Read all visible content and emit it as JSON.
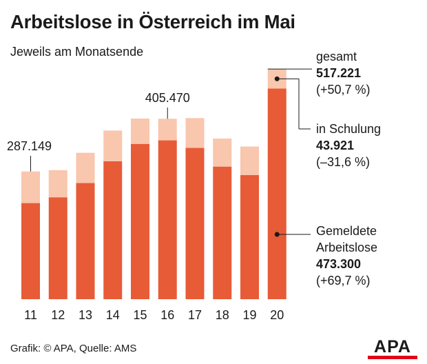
{
  "title": "Arbeitslose in Österreich im Mai",
  "subtitle": "Jeweils am Monatsende",
  "source": "Grafik: © APA, Quelle: AMS",
  "logo": "APA",
  "colors": {
    "registered": "#e75b37",
    "training": "#f9c6ae",
    "text": "#1a1a1a"
  },
  "chart_data": {
    "type": "bar",
    "stacked": true,
    "categories": [
      "11",
      "12",
      "13",
      "14",
      "15",
      "16",
      "17",
      "18",
      "19",
      "20"
    ],
    "series": [
      {
        "name": "Gemeldete Arbeitslose",
        "values": [
          216000,
          229000,
          261000,
          310000,
          349000,
          357000,
          340000,
          298000,
          279000,
          473300
        ]
      },
      {
        "name": "in Schulung",
        "values": [
          71149,
          61000,
          68000,
          69000,
          57000,
          48470,
          67000,
          63000,
          64000,
          43921
        ]
      }
    ],
    "ylim": [
      0,
      550000
    ],
    "value_labels": [
      {
        "category": "11",
        "text": "287.149"
      },
      {
        "category": "16",
        "text": "405.470"
      }
    ],
    "legend": [
      {
        "key": "total",
        "label": "gesamt",
        "value": "517.221",
        "change": "(+50,7 %)"
      },
      {
        "key": "training",
        "label": "in Schulung",
        "value": "43.921",
        "change": "(–31,6 %)"
      },
      {
        "key": "registered",
        "label_line1": "Gemeldete",
        "label_line2": "Arbeitslose",
        "value": "473.300",
        "change": "(+69,7 %)"
      }
    ]
  }
}
